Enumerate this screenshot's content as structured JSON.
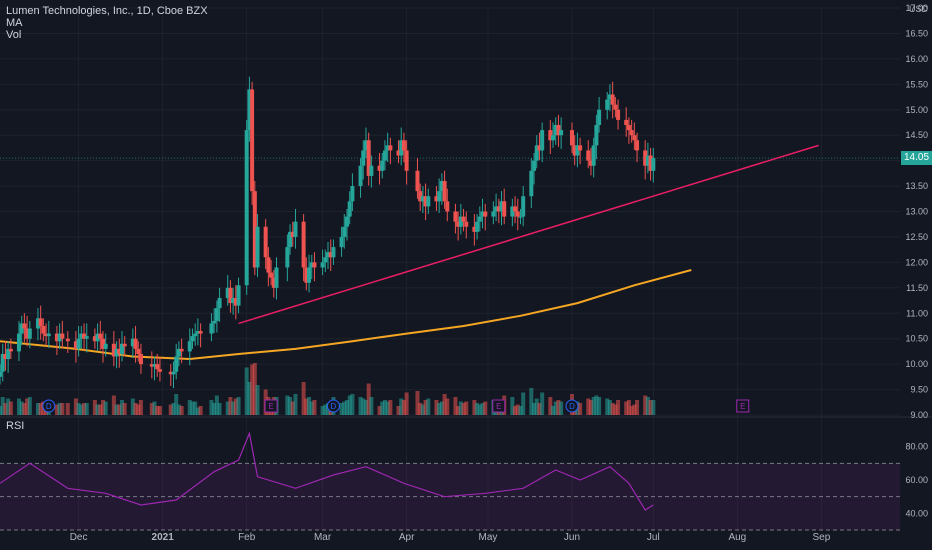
{
  "header": {
    "title": "Lumen Technologies, Inc., 1D, Cboe BZX",
    "ma_label": "MA",
    "vol_label": "Vol"
  },
  "currency": "USD",
  "last_price": "14.05",
  "rsi_label": "RSI",
  "colors": {
    "up": "#26a69a",
    "down": "#ef5350",
    "ma": "#f5a623",
    "trend": "#e91e63",
    "rsi": "#9c27b0",
    "badge": "#26a69a"
  },
  "chart_data": [
    {
      "type": "candlestick",
      "title": "Lumen Technologies, Inc., 1D, Cboe BZX",
      "y_ticks": [
        "9.00",
        "9.50",
        "10.00",
        "10.50",
        "11.00",
        "11.50",
        "12.00",
        "12.50",
        "13.00",
        "13.50",
        "14.00",
        "14.50",
        "15.00",
        "15.50",
        "16.00",
        "16.50",
        "17.00"
      ],
      "ylim": [
        9.0,
        17.0
      ],
      "x_ticks": [
        "Dec",
        "2021",
        "Feb",
        "Mar",
        "Apr",
        "May",
        "Jun",
        "Jul",
        "Aug",
        "Sep"
      ],
      "x_tick_dates": [
        "2020-12-01",
        "2021-01-01",
        "2021-02-01",
        "2021-03-01",
        "2021-04-01",
        "2021-05-01",
        "2021-06-01",
        "2021-07-01",
        "2021-08-01",
        "2021-09-01"
      ],
      "xlim": [
        "2020-11-02",
        "2021-09-30"
      ],
      "closes": [
        [
          "2020-11-02",
          9.85
        ],
        [
          "2020-11-03",
          10.2
        ],
        [
          "2020-11-04",
          10.1
        ],
        [
          "2020-11-05",
          10.3
        ],
        [
          "2020-11-06",
          10.25
        ],
        [
          "2020-11-09",
          10.6
        ],
        [
          "2020-11-10",
          10.8
        ],
        [
          "2020-11-11",
          10.7
        ],
        [
          "2020-11-12",
          10.5
        ],
        [
          "2020-11-13",
          10.7
        ],
        [
          "2020-11-16",
          10.9
        ],
        [
          "2020-11-17",
          10.75
        ],
        [
          "2020-11-18",
          10.6
        ],
        [
          "2020-11-19",
          10.55
        ],
        [
          "2020-11-20",
          10.6
        ],
        [
          "2020-11-23",
          10.45
        ],
        [
          "2020-11-24",
          10.6
        ],
        [
          "2020-11-25",
          10.5
        ],
        [
          "2020-11-27",
          10.45
        ],
        [
          "2020-11-30",
          10.3
        ],
        [
          "2020-12-01",
          10.5
        ],
        [
          "2020-12-02",
          10.6
        ],
        [
          "2020-12-03",
          10.5
        ],
        [
          "2020-12-04",
          10.55
        ],
        [
          "2020-12-07",
          10.45
        ],
        [
          "2020-12-08",
          10.6
        ],
        [
          "2020-12-09",
          10.5
        ],
        [
          "2020-12-10",
          10.3
        ],
        [
          "2020-12-11",
          10.4
        ],
        [
          "2020-12-14",
          10.15
        ],
        [
          "2020-12-15",
          10.3
        ],
        [
          "2020-12-16",
          10.2
        ],
        [
          "2020-12-17",
          10.4
        ],
        [
          "2020-12-18",
          10.35
        ],
        [
          "2020-12-21",
          10.5
        ],
        [
          "2020-12-22",
          10.3
        ],
        [
          "2020-12-23",
          10.2
        ],
        [
          "2020-12-24",
          10.0
        ],
        [
          "2020-12-28",
          9.95
        ],
        [
          "2020-12-29",
          10.0
        ],
        [
          "2020-12-30",
          9.9
        ],
        [
          "2020-12-31",
          9.85
        ],
        [
          "2021-01-04",
          9.8
        ],
        [
          "2021-01-05",
          9.85
        ],
        [
          "2021-01-06",
          10.15
        ],
        [
          "2021-01-07",
          10.3
        ],
        [
          "2021-01-08",
          10.25
        ],
        [
          "2021-01-11",
          10.45
        ],
        [
          "2021-01-12",
          10.55
        ],
        [
          "2021-01-13",
          10.6
        ],
        [
          "2021-01-14",
          10.65
        ],
        [
          "2021-01-15",
          10.6
        ],
        [
          "2021-01-19",
          10.8
        ],
        [
          "2021-01-20",
          10.85
        ],
        [
          "2021-01-21",
          11.1
        ],
        [
          "2021-01-22",
          11.3
        ],
        [
          "2021-01-25",
          11.5
        ],
        [
          "2021-01-26",
          11.2
        ],
        [
          "2021-01-27",
          11.3
        ],
        [
          "2021-01-28",
          11.15
        ],
        [
          "2021-01-29",
          11.55
        ],
        [
          "2021-02-01",
          14.6
        ],
        [
          "2021-02-02",
          15.4
        ],
        [
          "2021-02-03",
          13.4
        ],
        [
          "2021-02-04",
          11.9
        ],
        [
          "2021-02-05",
          12.7
        ],
        [
          "2021-02-08",
          12.1
        ],
        [
          "2021-02-09",
          11.8
        ],
        [
          "2021-02-10",
          11.7
        ],
        [
          "2021-02-11",
          11.5
        ],
        [
          "2021-02-12",
          11.9
        ],
        [
          "2021-02-16",
          12.3
        ],
        [
          "2021-02-17",
          12.6
        ],
        [
          "2021-02-18",
          12.5
        ],
        [
          "2021-02-19",
          12.8
        ],
        [
          "2021-02-22",
          11.9
        ],
        [
          "2021-02-23",
          11.6
        ],
        [
          "2021-02-24",
          11.9
        ],
        [
          "2021-02-25",
          12.0
        ],
        [
          "2021-02-26",
          11.9
        ],
        [
          "2021-03-01",
          12.0
        ],
        [
          "2021-03-02",
          12.1
        ],
        [
          "2021-03-03",
          12.2
        ],
        [
          "2021-03-04",
          12.1
        ],
        [
          "2021-03-05",
          12.3
        ],
        [
          "2021-03-08",
          12.5
        ],
        [
          "2021-03-09",
          12.7
        ],
        [
          "2021-03-10",
          12.9
        ],
        [
          "2021-03-11",
          13.2
        ],
        [
          "2021-03-12",
          13.5
        ],
        [
          "2021-03-15",
          13.9
        ],
        [
          "2021-03-16",
          14.2
        ],
        [
          "2021-03-17",
          14.4
        ],
        [
          "2021-03-18",
          13.7
        ],
        [
          "2021-03-19",
          13.9
        ],
        [
          "2021-03-22",
          13.8
        ],
        [
          "2021-03-23",
          14.0
        ],
        [
          "2021-03-24",
          14.2
        ],
        [
          "2021-03-25",
          14.3
        ],
        [
          "2021-03-26",
          14.2
        ],
        [
          "2021-03-29",
          14.1
        ],
        [
          "2021-03-30",
          14.4
        ],
        [
          "2021-03-31",
          14.2
        ],
        [
          "2021-04-01",
          13.8
        ],
        [
          "2021-04-05",
          13.4
        ],
        [
          "2021-04-06",
          13.2
        ],
        [
          "2021-04-07",
          13.3
        ],
        [
          "2021-04-08",
          13.1
        ],
        [
          "2021-04-09",
          13.3
        ],
        [
          "2021-04-12",
          13.2
        ],
        [
          "2021-04-13",
          13.4
        ],
        [
          "2021-04-14",
          13.6
        ],
        [
          "2021-04-15",
          13.2
        ],
        [
          "2021-04-16",
          13.0
        ],
        [
          "2021-04-19",
          12.8
        ],
        [
          "2021-04-20",
          12.7
        ],
        [
          "2021-04-21",
          12.9
        ],
        [
          "2021-04-22",
          12.8
        ],
        [
          "2021-04-23",
          12.7
        ],
        [
          "2021-04-26",
          12.6
        ],
        [
          "2021-04-27",
          12.8
        ],
        [
          "2021-04-28",
          12.9
        ],
        [
          "2021-04-29",
          13.0
        ],
        [
          "2021-04-30",
          12.9
        ],
        [
          "2021-05-03",
          13.0
        ],
        [
          "2021-05-04",
          13.1
        ],
        [
          "2021-05-05",
          13.0
        ],
        [
          "2021-05-06",
          13.2
        ],
        [
          "2021-05-07",
          12.9
        ],
        [
          "2021-05-10",
          13.1
        ],
        [
          "2021-05-11",
          13.0
        ],
        [
          "2021-05-12",
          12.9
        ],
        [
          "2021-05-13",
          12.9
        ],
        [
          "2021-05-14",
          13.3
        ],
        [
          "2021-05-17",
          13.8
        ],
        [
          "2021-05-18",
          14.0
        ],
        [
          "2021-05-19",
          14.3
        ],
        [
          "2021-05-20",
          14.2
        ],
        [
          "2021-05-21",
          14.6
        ],
        [
          "2021-05-24",
          14.4
        ],
        [
          "2021-05-25",
          14.5
        ],
        [
          "2021-05-26",
          14.7
        ],
        [
          "2021-05-27",
          14.5
        ],
        [
          "2021-05-28",
          14.6
        ],
        [
          "2021-06-01",
          14.3
        ],
        [
          "2021-06-02",
          14.1
        ],
        [
          "2021-06-03",
          14.3
        ],
        [
          "2021-06-04",
          14.2
        ],
        [
          "2021-06-07",
          14.0
        ],
        [
          "2021-06-08",
          13.9
        ],
        [
          "2021-06-09",
          14.3
        ],
        [
          "2021-06-10",
          14.7
        ],
        [
          "2021-06-11",
          15.0
        ],
        [
          "2021-06-14",
          15.2
        ],
        [
          "2021-06-15",
          15.3
        ],
        [
          "2021-06-16",
          15.1
        ],
        [
          "2021-06-17",
          15.0
        ],
        [
          "2021-06-18",
          14.8
        ],
        [
          "2021-06-21",
          14.7
        ],
        [
          "2021-06-22",
          14.6
        ],
        [
          "2021-06-23",
          14.5
        ],
        [
          "2021-06-24",
          14.4
        ],
        [
          "2021-06-25",
          14.2
        ],
        [
          "2021-06-28",
          13.9
        ],
        [
          "2021-06-29",
          14.1
        ],
        [
          "2021-06-30",
          13.8
        ],
        [
          "2021-07-01",
          14.05
        ]
      ],
      "moving_average_200": [
        [
          "2020-11-02",
          10.45
        ],
        [
          "2020-11-30",
          10.3
        ],
        [
          "2020-12-21",
          10.15
        ],
        [
          "2021-01-11",
          10.1
        ],
        [
          "2021-01-29",
          10.2
        ],
        [
          "2021-02-19",
          10.3
        ],
        [
          "2021-03-12",
          10.45
        ],
        [
          "2021-04-01",
          10.6
        ],
        [
          "2021-04-22",
          10.75
        ],
        [
          "2021-05-13",
          10.95
        ],
        [
          "2021-06-03",
          11.2
        ],
        [
          "2021-06-24",
          11.55
        ],
        [
          "2021-07-15",
          11.85
        ]
      ],
      "trendline": [
        [
          "2021-01-29",
          10.8
        ],
        [
          "2021-08-31",
          14.3
        ]
      ],
      "events": [
        {
          "date": "2020-11-20",
          "label": "D"
        },
        {
          "date": "2021-02-10",
          "label": "E"
        },
        {
          "date": "2021-03-05",
          "label": "D"
        },
        {
          "date": "2021-05-05",
          "label": "E"
        },
        {
          "date": "2021-06-01",
          "label": "D"
        },
        {
          "date": "2021-08-03",
          "label": "E"
        }
      ]
    },
    {
      "type": "line",
      "title": "RSI",
      "y_ticks": [
        "40.00",
        "60.00",
        "80.00"
      ],
      "ylim": [
        30,
        90
      ],
      "levels": [
        70,
        50,
        30
      ],
      "series": [
        {
          "values": [
            [
              "2020-11-02",
              58
            ],
            [
              "2020-11-13",
              70
            ],
            [
              "2020-11-27",
              55
            ],
            [
              "2020-12-11",
              52
            ],
            [
              "2020-12-24",
              45
            ],
            [
              "2021-01-06",
              48
            ],
            [
              "2021-01-20",
              65
            ],
            [
              "2021-01-29",
              72
            ],
            [
              "2021-02-02",
              88
            ],
            [
              "2021-02-05",
              62
            ],
            [
              "2021-02-19",
              55
            ],
            [
              "2021-03-05",
              63
            ],
            [
              "2021-03-17",
              68
            ],
            [
              "2021-03-31",
              58
            ],
            [
              "2021-04-15",
              50
            ],
            [
              "2021-04-30",
              52
            ],
            [
              "2021-05-14",
              55
            ],
            [
              "2021-05-26",
              66
            ],
            [
              "2021-06-04",
              60
            ],
            [
              "2021-06-15",
              68
            ],
            [
              "2021-06-22",
              58
            ],
            [
              "2021-06-28",
              42
            ],
            [
              "2021-07-01",
              45
            ]
          ]
        }
      ]
    }
  ]
}
